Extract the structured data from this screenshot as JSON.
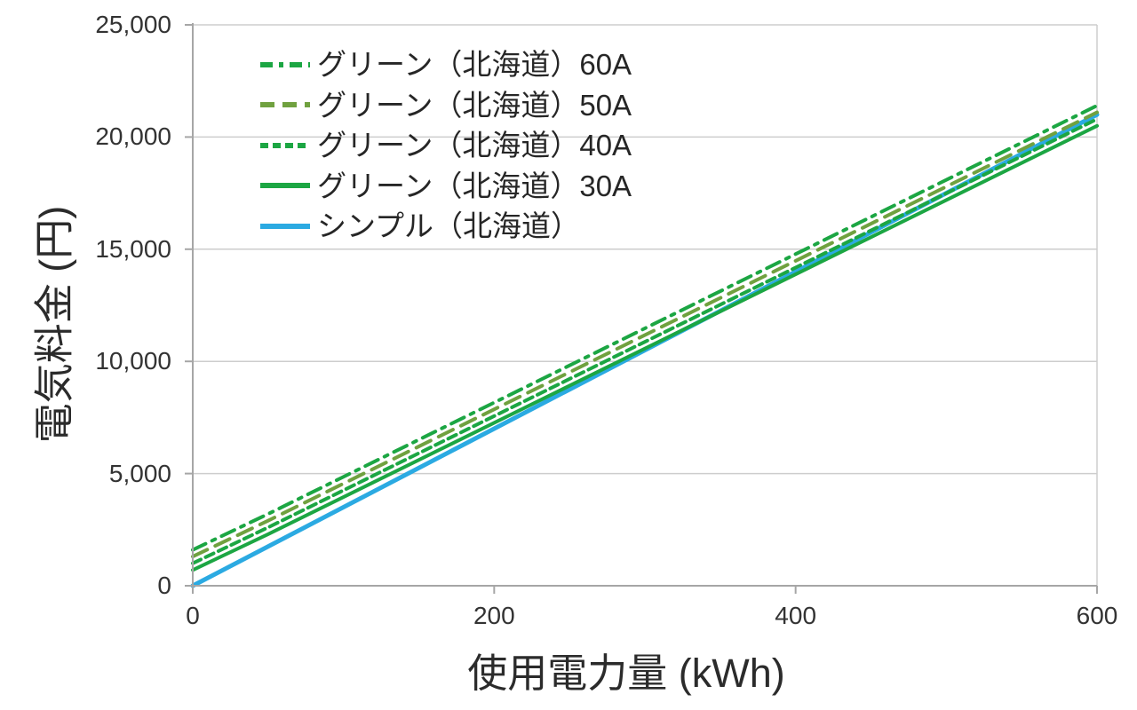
{
  "chart_data": {
    "type": "line",
    "title": "",
    "xlabel": "使用電力量 (kWh)",
    "ylabel": "電気料金 (円)",
    "xlim": [
      0,
      600
    ],
    "ylim": [
      0,
      25000
    ],
    "grid": "horizontal",
    "legend_position": "top-left-inside",
    "x_ticks": [
      {
        "value": 0,
        "label": "0"
      },
      {
        "value": 200,
        "label": "200"
      },
      {
        "value": 400,
        "label": "400"
      },
      {
        "value": 600,
        "label": "600"
      }
    ],
    "y_ticks": [
      {
        "value": 0,
        "label": "0"
      },
      {
        "value": 5000,
        "label": "5,000"
      },
      {
        "value": 10000,
        "label": "10,000"
      },
      {
        "value": 15000,
        "label": "15,000"
      },
      {
        "value": 20000,
        "label": "20,000"
      },
      {
        "value": 25000,
        "label": "25,000"
      }
    ],
    "series": [
      {
        "id": "green-60a",
        "label": "グリーン（北海道）60A",
        "color": "#1ca643",
        "dash": "16 8 4 8",
        "width": 4,
        "points": [
          [
            0,
            1600
          ],
          [
            50,
            3200
          ],
          [
            600,
            21400
          ]
        ]
      },
      {
        "id": "green-50a",
        "label": "グリーン（北海道）50A",
        "color": "#70a13f",
        "dash": "18 10",
        "width": 4,
        "points": [
          [
            0,
            1300
          ],
          [
            50,
            2900
          ],
          [
            600,
            21100
          ]
        ]
      },
      {
        "id": "green-40a",
        "label": "グリーン（北海道）40A",
        "color": "#1ca643",
        "dash": "10 6",
        "width": 4,
        "points": [
          [
            0,
            1000
          ],
          [
            50,
            2600
          ],
          [
            600,
            20800
          ]
        ]
      },
      {
        "id": "green-30a",
        "label": "グリーン（北海道）30A",
        "color": "#1ca643",
        "dash": "",
        "width": 4,
        "points": [
          [
            0,
            700
          ],
          [
            50,
            2300
          ],
          [
            600,
            20500
          ]
        ]
      },
      {
        "id": "simple",
        "label": "シンプル（北海道）",
        "color": "#2baae2",
        "dash": "",
        "width": 5,
        "points": [
          [
            0,
            0
          ],
          [
            600,
            21000
          ]
        ]
      }
    ],
    "style": {
      "axis_color": "#a6a6a6",
      "grid_color": "#cdcdcd",
      "tick_label_color": "#333333",
      "title_color": "#2b2b2b"
    }
  }
}
